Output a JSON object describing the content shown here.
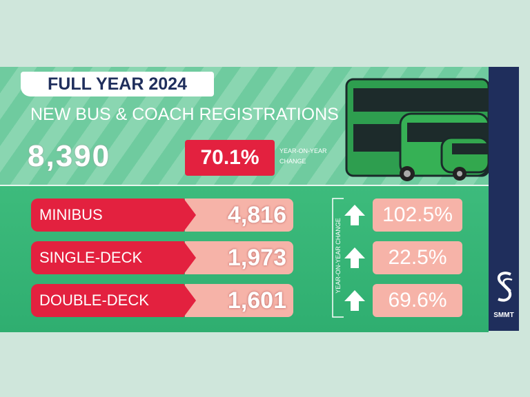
{
  "header": {
    "title": "FULL YEAR 2024",
    "subtitle": "NEW BUS & COACH REGISTRATIONS"
  },
  "total": {
    "value": "8,390",
    "change": "70.1%",
    "change_label": [
      "YEAR-ON-YEAR",
      "CHANGE"
    ]
  },
  "rows": [
    {
      "label": "MINIBUS",
      "value": "4,816",
      "change": "102.5%"
    },
    {
      "label": "SINGLE-DECK",
      "value": "1,973",
      "change": "22.5%"
    },
    {
      "label": "DOUBLE-DECK",
      "value": "1,601",
      "change": "69.6%"
    }
  ],
  "side_label": "YEAR-ON-YEAR CHANGE",
  "brand": "SMMT"
}
